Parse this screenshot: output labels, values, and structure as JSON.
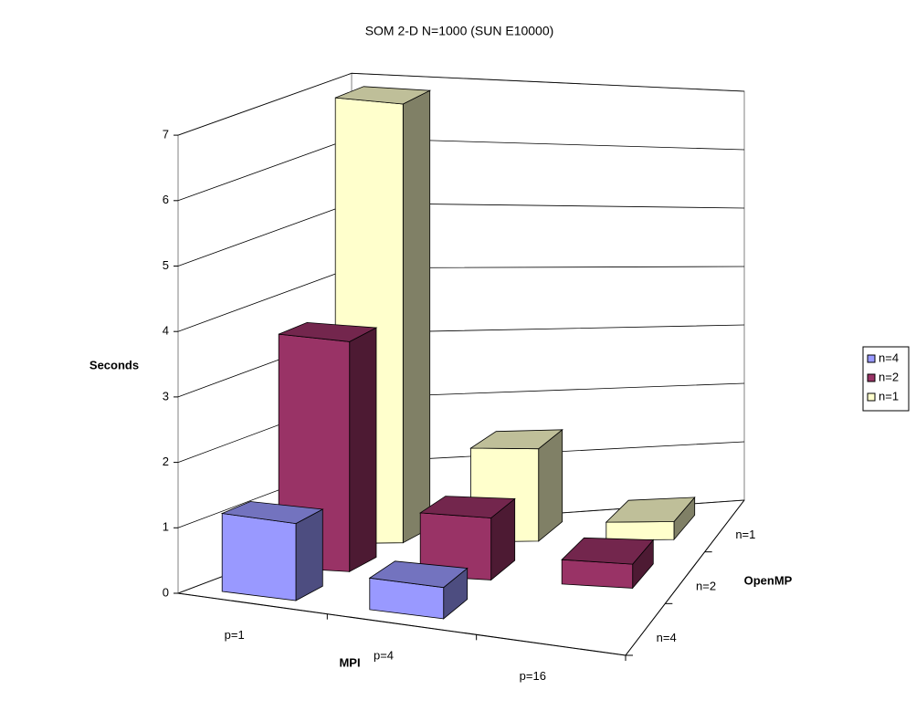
{
  "chart_data": {
    "type": "bar3d",
    "title": "SOM 2-D N=1000 (SUN E10000)",
    "y_label": "Seconds",
    "x_label": "MPI",
    "z_label": "OpenMP",
    "categories": [
      "p=1",
      "p=4",
      "p=16"
    ],
    "series": [
      {
        "name": "n=4",
        "color": "#9999ff",
        "values": [
          1.2,
          0.5,
          null
        ]
      },
      {
        "name": "n=2",
        "color": "#993366",
        "values": [
          3.6,
          1.0,
          0.4
        ]
      },
      {
        "name": "n=1",
        "color": "#ffffcc",
        "values": [
          6.9,
          1.5,
          0.3
        ]
      }
    ],
    "ylim": [
      0,
      7
    ],
    "yticks": [
      0,
      1,
      2,
      3,
      4,
      5,
      6,
      7
    ],
    "grid": true,
    "legend": "right"
  }
}
